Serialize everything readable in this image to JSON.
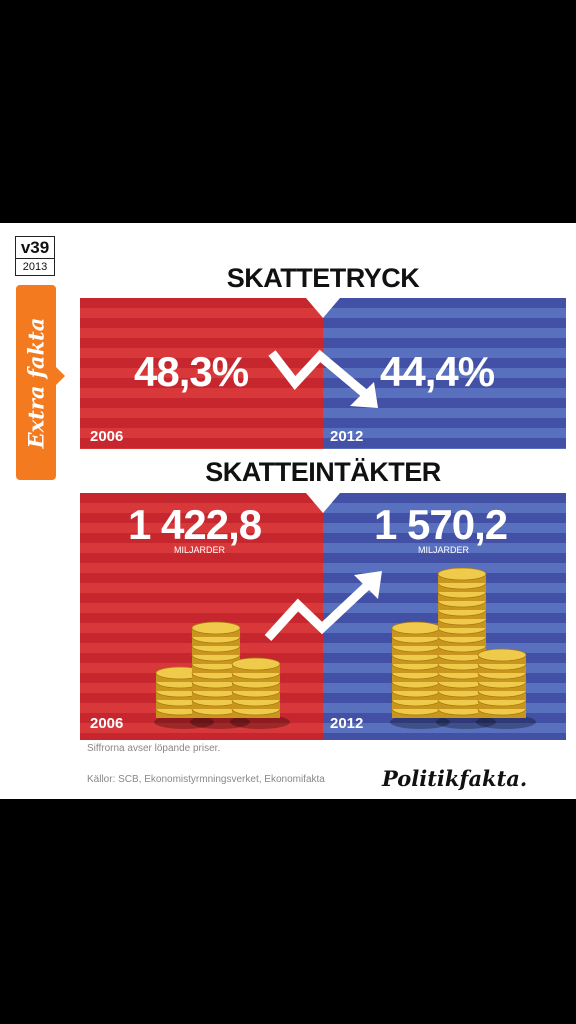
{
  "badge": {
    "week": "v39",
    "year": "2013"
  },
  "tab_label": "Extra fakta",
  "tax_burden": {
    "title": "SKATTETRYCK",
    "left": {
      "value": "48,3%",
      "year": "2006"
    },
    "right": {
      "value": "44,4%",
      "year": "2012"
    }
  },
  "tax_revenue": {
    "title": "SKATTEINTÄKTER",
    "left": {
      "value": "1 422,8",
      "unit": "MILJARDER",
      "year": "2006"
    },
    "right": {
      "value": "1 570,2",
      "unit": "MILJARDER",
      "year": "2012"
    }
  },
  "footnote": "Siffrorna avser löpande priser.",
  "sources": "Källor: SCB, Ekonomistyrmningsverket, Ekonomifakta",
  "brand": "Politikfakta.",
  "colors": {
    "red": "#c6262d",
    "blue": "#4250a5",
    "orange": "#f47a20",
    "gold": "#e2b52c"
  }
}
